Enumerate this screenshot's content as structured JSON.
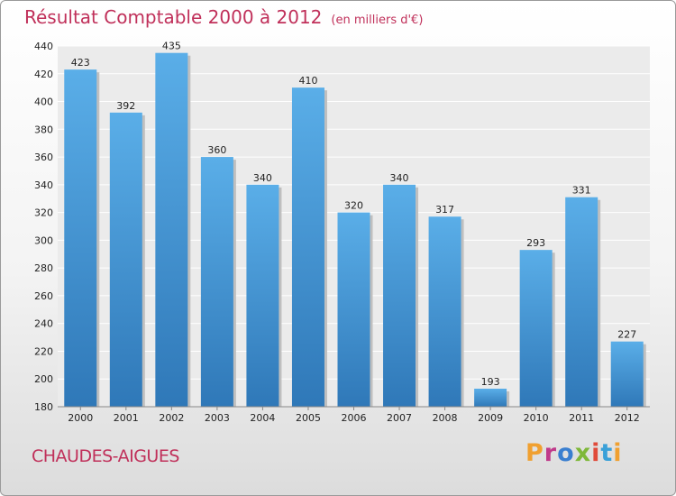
{
  "header": {
    "title": "Résultat Comptable 2000 à 2012",
    "unit": "(en milliers d'€)"
  },
  "footer": {
    "commune": "CHAUDES-AIGUES",
    "brand": "Proxiti",
    "brand_colors": [
      "#f0a030",
      "#c03a8a",
      "#3a7fd0",
      "#7fb83a",
      "#e04a3a",
      "#3aa0d8",
      "#f0a030"
    ]
  },
  "chart_data": {
    "type": "bar",
    "title": "Résultat Comptable 2000 à 2012",
    "subtitle": "(en milliers d'€)",
    "xlabel": "",
    "ylabel": "",
    "categories": [
      "2000",
      "2001",
      "2002",
      "2003",
      "2004",
      "2005",
      "2006",
      "2007",
      "2008",
      "2009",
      "2010",
      "2011",
      "2012"
    ],
    "values": [
      423,
      392,
      435,
      360,
      340,
      410,
      320,
      340,
      317,
      193,
      293,
      331,
      227
    ],
    "ylim": [
      180,
      440
    ],
    "yticks": [
      180,
      200,
      220,
      240,
      260,
      280,
      300,
      320,
      340,
      360,
      380,
      400,
      420,
      440
    ],
    "grid": true,
    "bar_color": "#3d8fd6"
  }
}
